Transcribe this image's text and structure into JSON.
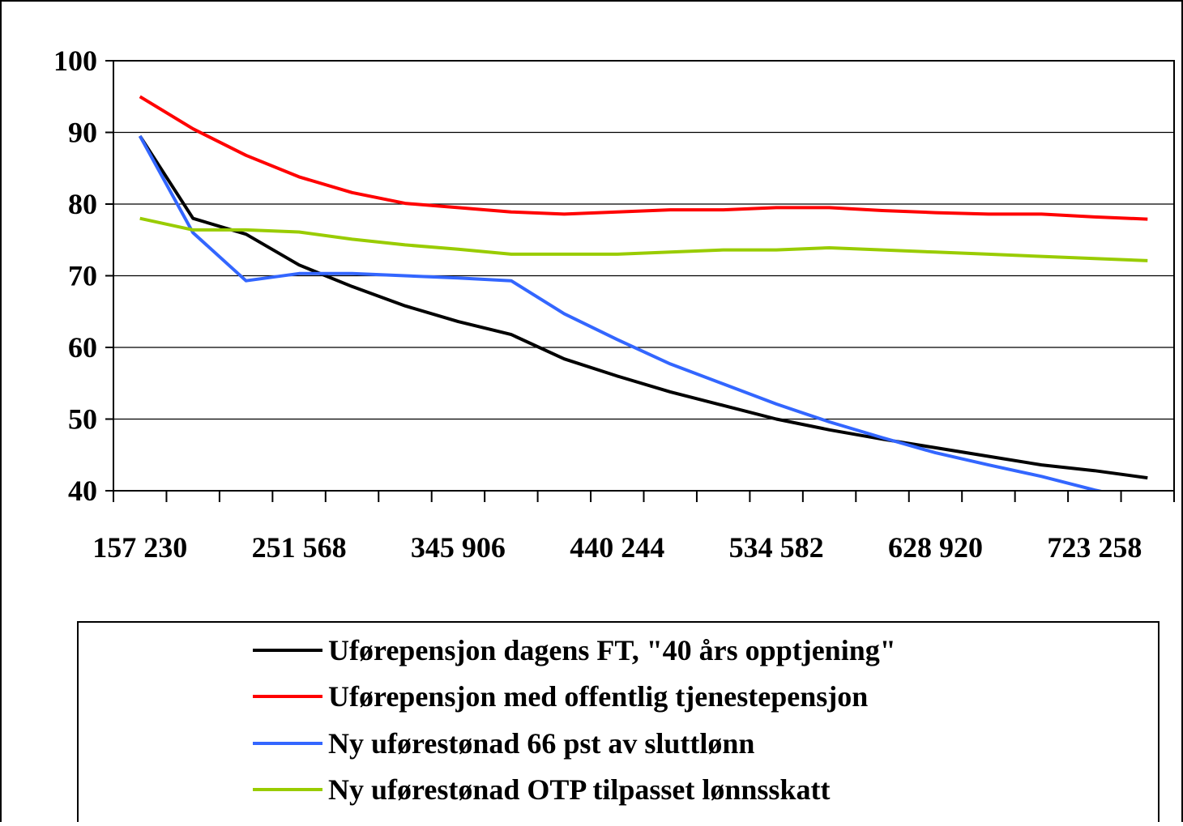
{
  "chart_data": {
    "type": "line",
    "title": "",
    "xlabel": "",
    "ylabel": "",
    "ylim": [
      40,
      100
    ],
    "y_ticks": [
      "40",
      "50",
      "60",
      "70",
      "80",
      "90",
      "100"
    ],
    "x_tick_labels": [
      "157 230",
      "251 568",
      "345 906",
      "440 244",
      "534 582",
      "628 920",
      "723 258"
    ],
    "x": [
      157230,
      188676,
      220122,
      251568,
      283014,
      314460,
      345906,
      377352,
      408798,
      440244,
      471690,
      503136,
      534582,
      566028,
      597474,
      628920,
      660366,
      691812,
      723258,
      754704
    ],
    "grid": "horizontal",
    "legend_position": "bottom",
    "series": [
      {
        "name": "Uførepensjon dagens FT, \"40 års opptjening\"",
        "color": "#000000",
        "values": [
          89.5,
          78.0,
          75.8,
          71.5,
          68.5,
          65.8,
          63.6,
          61.8,
          58.4,
          56.0,
          53.8,
          51.9,
          50.0,
          48.5,
          47.2,
          46.0,
          44.8,
          43.6,
          42.8,
          41.8
        ]
      },
      {
        "name": "Uførepensjon med offentlig tjenestepensjon",
        "color": "#ff0000",
        "values": [
          95.0,
          90.5,
          86.8,
          83.8,
          81.6,
          80.1,
          79.5,
          78.9,
          78.6,
          78.9,
          79.2,
          79.2,
          79.5,
          79.5,
          79.1,
          78.8,
          78.6,
          78.6,
          78.2,
          77.9
        ]
      },
      {
        "name": "Ny uførestønad 66 pst av sluttlønn",
        "color": "#3366ff",
        "values": [
          89.5,
          76.0,
          69.3,
          70.3,
          70.3,
          70.0,
          69.7,
          69.3,
          64.7,
          61.1,
          57.7,
          54.9,
          52.1,
          49.6,
          47.4,
          45.3,
          43.6,
          42.0,
          40.1,
          38.5
        ]
      },
      {
        "name": "Ny uførestønad OTP tilpasset lønnsskatt",
        "color": "#99cc00",
        "values": [
          78.0,
          76.4,
          76.4,
          76.1,
          75.1,
          74.3,
          73.7,
          73.0,
          73.0,
          73.0,
          73.3,
          73.6,
          73.6,
          73.9,
          73.6,
          73.3,
          73.0,
          72.7,
          72.4,
          72.1
        ]
      }
    ]
  }
}
